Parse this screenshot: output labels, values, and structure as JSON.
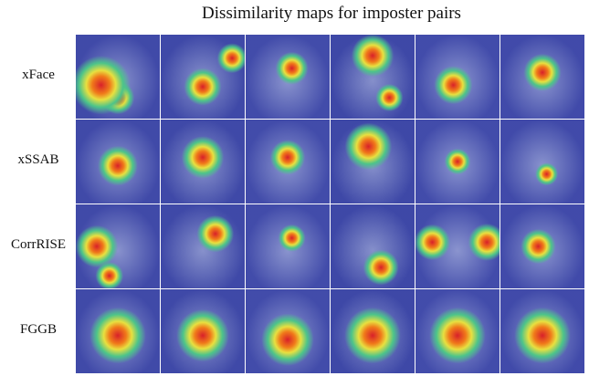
{
  "figure": {
    "title": "Dissimilarity maps for imposter pairs",
    "rows": [
      "xFace",
      "xSSAB",
      "CorrRISE",
      "FGGB"
    ]
  }
}
